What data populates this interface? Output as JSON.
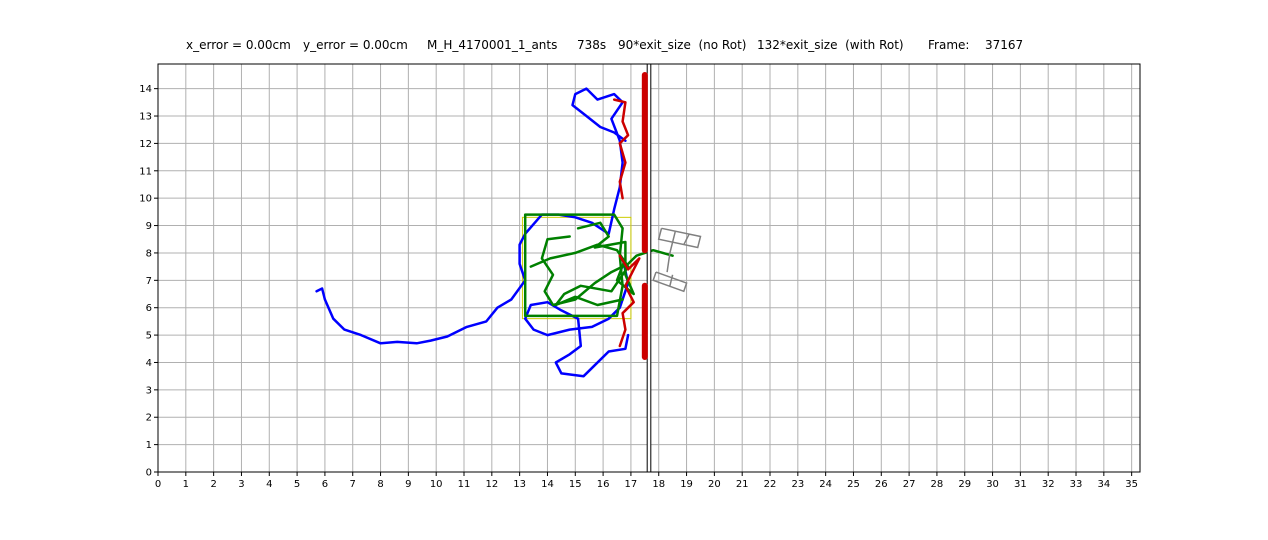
{
  "header": {
    "x_error": "x_error = 0.00cm",
    "y_error": "y_error = 0.00cm",
    "experiment": "M_H_4170001_1_ants",
    "time": "738s",
    "no_rot": "90*exit_size  (no Rot)",
    "with_rot": "132*exit_size  (with Rot)",
    "frame_label": "Frame:",
    "frame_value": "37167"
  },
  "chart_data": {
    "type": "line",
    "title": "",
    "xlabel": "",
    "ylabel": "",
    "xlim": [
      0,
      35.3
    ],
    "ylim": [
      0,
      14.9
    ],
    "xticks": [
      "0",
      "1",
      "2",
      "3",
      "4",
      "5",
      "6",
      "7",
      "8",
      "9",
      "10",
      "11",
      "12",
      "13",
      "14",
      "15",
      "16",
      "17",
      "18",
      "19",
      "20",
      "21",
      "22",
      "23",
      "24",
      "25",
      "26",
      "27",
      "28",
      "29",
      "30",
      "31",
      "32",
      "33",
      "34",
      "35"
    ],
    "yticks": [
      "0",
      "1",
      "2",
      "3",
      "4",
      "5",
      "6",
      "7",
      "8",
      "9",
      "10",
      "11",
      "12",
      "13",
      "14"
    ],
    "grid": true,
    "colors": {
      "blue": "#0000ff",
      "green": "#008000",
      "red": "#cc0000",
      "gray": "#808080",
      "yellow": "#cccc00"
    },
    "series": [
      {
        "color": "blue",
        "points": [
          [
            5.7,
            6.6
          ],
          [
            5.9,
            6.7
          ],
          [
            6.0,
            6.3
          ],
          [
            6.3,
            5.6
          ],
          [
            6.7,
            5.2
          ],
          [
            7.3,
            5.0
          ],
          [
            8.0,
            4.7
          ],
          [
            8.6,
            4.75
          ],
          [
            9.3,
            4.7
          ],
          [
            9.8,
            4.8
          ],
          [
            10.4,
            4.95
          ],
          [
            11.1,
            5.3
          ],
          [
            11.8,
            5.5
          ],
          [
            12.2,
            6.0
          ],
          [
            12.7,
            6.3
          ],
          [
            13.2,
            7.0
          ],
          [
            13.0,
            7.6
          ],
          [
            13.0,
            8.3
          ],
          [
            13.2,
            8.7
          ],
          [
            13.8,
            9.4
          ],
          [
            14.4,
            9.4
          ],
          [
            15.0,
            9.3
          ],
          [
            15.6,
            9.1
          ],
          [
            16.2,
            8.7
          ],
          [
            16.4,
            9.6
          ],
          [
            16.6,
            10.4
          ],
          [
            16.7,
            11.3
          ],
          [
            16.6,
            12.1
          ],
          [
            16.3,
            12.9
          ],
          [
            16.7,
            13.5
          ],
          [
            16.4,
            13.8
          ],
          [
            15.8,
            13.6
          ],
          [
            15.4,
            14.0
          ],
          [
            15.0,
            13.8
          ],
          [
            14.9,
            13.4
          ],
          [
            15.4,
            13.0
          ],
          [
            15.9,
            12.6
          ],
          [
            16.4,
            12.4
          ],
          [
            16.8,
            12.1
          ]
        ]
      },
      {
        "color": "blue",
        "points": [
          [
            16.7,
            7.8
          ],
          [
            16.9,
            6.9
          ],
          [
            16.6,
            6.0
          ],
          [
            16.2,
            5.6
          ],
          [
            15.6,
            5.3
          ],
          [
            14.8,
            5.2
          ],
          [
            14.0,
            5.0
          ],
          [
            13.5,
            5.2
          ],
          [
            13.2,
            5.6
          ],
          [
            13.4,
            6.1
          ],
          [
            14.0,
            6.2
          ],
          [
            14.5,
            5.9
          ],
          [
            15.1,
            5.6
          ],
          [
            15.2,
            4.6
          ],
          [
            14.8,
            4.3
          ],
          [
            14.3,
            4.0
          ],
          [
            14.5,
            3.6
          ],
          [
            15.3,
            3.5
          ],
          [
            15.7,
            3.9
          ],
          [
            16.2,
            4.4
          ],
          [
            16.8,
            4.5
          ],
          [
            16.9,
            5.0
          ]
        ]
      },
      {
        "color": "green",
        "points": [
          [
            13.2,
            5.7
          ],
          [
            16.5,
            5.7
          ],
          [
            16.7,
            6.8
          ],
          [
            16.6,
            7.9
          ],
          [
            16.7,
            8.9
          ],
          [
            16.4,
            9.4
          ],
          [
            13.2,
            9.4
          ],
          [
            13.2,
            8.2
          ],
          [
            13.2,
            5.7
          ]
        ]
      },
      {
        "color": "green",
        "points": [
          [
            14.8,
            8.6
          ],
          [
            14.0,
            8.5
          ],
          [
            13.8,
            7.8
          ],
          [
            14.2,
            7.2
          ],
          [
            13.9,
            6.6
          ],
          [
            14.2,
            6.1
          ],
          [
            15.0,
            6.3
          ],
          [
            15.7,
            6.9
          ],
          [
            16.3,
            7.3
          ],
          [
            16.9,
            7.6
          ],
          [
            17.2,
            7.9
          ],
          [
            17.8,
            8.1
          ],
          [
            18.5,
            7.9
          ]
        ]
      },
      {
        "color": "green",
        "points": [
          [
            13.4,
            7.5
          ],
          [
            14.1,
            7.8
          ],
          [
            15.0,
            8.0
          ],
          [
            15.8,
            8.3
          ],
          [
            16.5,
            8.1
          ],
          [
            16.9,
            7.5
          ],
          [
            16.3,
            6.6
          ],
          [
            15.2,
            6.8
          ],
          [
            14.6,
            6.5
          ],
          [
            14.3,
            6.1
          ],
          [
            15.0,
            6.4
          ],
          [
            15.8,
            6.1
          ],
          [
            16.7,
            6.3
          ]
        ]
      },
      {
        "color": "green",
        "points": [
          [
            15.1,
            8.9
          ],
          [
            15.9,
            9.1
          ],
          [
            16.2,
            8.6
          ],
          [
            15.7,
            8.2
          ],
          [
            16.8,
            8.4
          ],
          [
            16.8,
            7.2
          ],
          [
            17.1,
            6.5
          ],
          [
            16.5,
            7.0
          ],
          [
            16.8,
            7.8
          ]
        ]
      },
      {
        "color": "red",
        "points": [
          [
            16.4,
            13.6
          ],
          [
            16.8,
            13.5
          ],
          [
            16.7,
            12.8
          ],
          [
            16.9,
            12.3
          ],
          [
            16.6,
            12.0
          ],
          [
            16.8,
            11.3
          ],
          [
            16.6,
            10.6
          ],
          [
            16.7,
            10.0
          ]
        ]
      },
      {
        "color": "red",
        "points": [
          [
            16.6,
            7.9
          ],
          [
            16.9,
            7.4
          ],
          [
            17.3,
            7.8
          ],
          [
            16.8,
            6.8
          ],
          [
            17.1,
            6.2
          ],
          [
            16.7,
            5.8
          ],
          [
            16.8,
            5.2
          ],
          [
            16.6,
            4.6
          ]
        ]
      }
    ],
    "wall": {
      "x": 17.65,
      "width": 0.13,
      "ymin": 0,
      "ymax": 14.9
    },
    "red_segments": [
      {
        "x": 17.5,
        "ymin": 8.1,
        "ymax": 14.5
      },
      {
        "x": 17.5,
        "ymin": 4.2,
        "ymax": 6.8
      }
    ],
    "yellow_box": {
      "x0": 13.1,
      "y0": 5.6,
      "x1": 17.0,
      "y1": 9.3
    },
    "load_shape": {
      "pieces": [
        {
          "color": "gray",
          "points": [
            [
              18.1,
              8.9
            ],
            [
              19.5,
              8.6
            ],
            [
              19.4,
              8.2
            ],
            [
              18.0,
              8.5
            ],
            [
              18.1,
              8.9
            ]
          ]
        },
        {
          "color": "gray",
          "points": [
            [
              17.9,
              7.3
            ],
            [
              19.0,
              6.9
            ],
            [
              18.9,
              6.6
            ],
            [
              17.8,
              7.0
            ],
            [
              17.9,
              7.3
            ]
          ]
        },
        {
          "color": "gray",
          "points": [
            [
              18.6,
              8.8
            ],
            [
              18.4,
              8.0
            ],
            [
              18.3,
              7.3
            ]
          ]
        },
        {
          "color": "gray",
          "points": [
            [
              19.1,
              8.7
            ],
            [
              18.9,
              8.3
            ]
          ]
        },
        {
          "color": "gray",
          "points": [
            [
              18.5,
              7.2
            ],
            [
              18.4,
              6.8
            ]
          ]
        }
      ]
    }
  }
}
